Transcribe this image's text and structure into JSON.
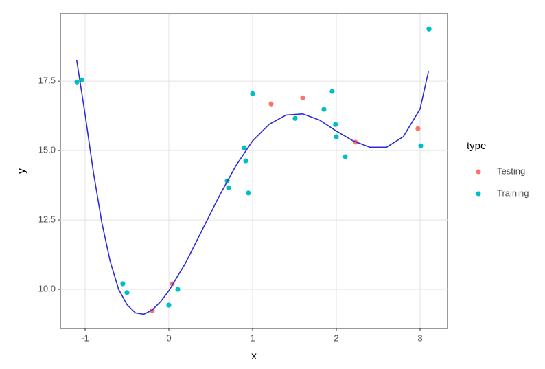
{
  "chart_data": {
    "type": "scatter",
    "x_label": "x",
    "y_label": "y",
    "legend_title": "type",
    "xlim": [
      -1.295,
      3.328
    ],
    "ylim": [
      8.59,
      19.93
    ],
    "xticks": [
      -1,
      0,
      1,
      2,
      3
    ],
    "yticks": [
      {
        "value": 10,
        "label": "10.0"
      },
      12.5,
      {
        "value": 15,
        "label": "15.0"
      },
      17.5
    ],
    "grid": true,
    "legend_position": "right",
    "series": [
      {
        "name": "Testing",
        "color": "#f8766d",
        "x": [
          -0.197,
          0.041,
          1.221,
          1.598,
          2.23,
          2.975
        ],
        "y": [
          9.23,
          10.2,
          16.68,
          16.9,
          15.3,
          15.79
        ]
      },
      {
        "name": "Training",
        "color": "#00bfc4",
        "x": [
          -1.098,
          -1.04,
          -0.55,
          -0.5,
          0.0,
          0.107,
          0.697,
          0.713,
          0.9,
          0.918,
          0.95,
          1.0,
          1.508,
          1.852,
          1.95,
          1.99,
          2.0,
          2.107,
          3.008,
          3.107
        ],
        "y": [
          17.47,
          17.55,
          10.2,
          9.88,
          9.43,
          10.0,
          13.91,
          13.66,
          15.1,
          14.63,
          13.47,
          17.05,
          16.16,
          16.49,
          17.13,
          15.94,
          15.5,
          14.78,
          15.17,
          19.38
        ]
      }
    ],
    "curve": {
      "color": "#2b2bd9",
      "x": [
        -1.1,
        -1.0,
        -0.9,
        -0.8,
        -0.7,
        -0.6,
        -0.5,
        -0.4,
        -0.3,
        -0.2,
        -0.1,
        0,
        0.2,
        0.4,
        0.6,
        0.8,
        1.0,
        1.2,
        1.4,
        1.6,
        1.8,
        2.0,
        2.2,
        2.4,
        2.6,
        2.8,
        3.0,
        3.1
      ],
      "y": [
        18.25,
        16.3,
        14.2,
        12.4,
        11.0,
        10.0,
        9.45,
        9.15,
        9.1,
        9.25,
        9.55,
        9.95,
        10.95,
        12.15,
        13.35,
        14.45,
        15.35,
        15.95,
        16.28,
        16.32,
        16.1,
        15.7,
        15.35,
        15.12,
        15.12,
        15.5,
        16.5,
        17.85
      ]
    }
  }
}
